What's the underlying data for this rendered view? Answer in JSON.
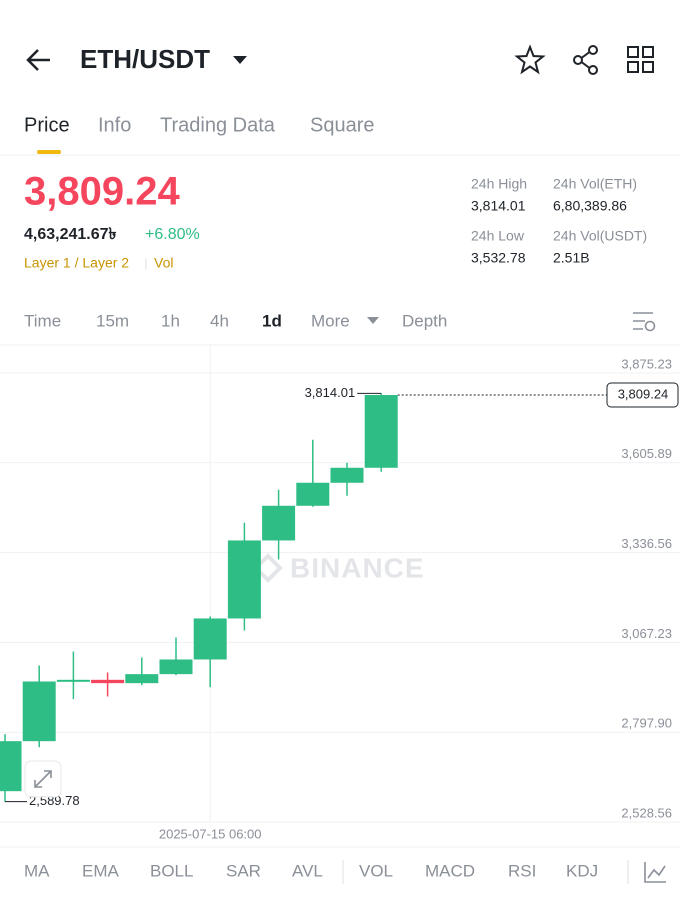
{
  "header": {
    "pair": "ETH/USDT"
  },
  "tabs": [
    "Price",
    "Info",
    "Trading Data",
    "Square"
  ],
  "price": {
    "last": "3,809.24",
    "fiat": "4,63,241.67৳",
    "change": "+6.80%",
    "tags": "Layer 1 / Layer 2",
    "tag_extra": "Vol"
  },
  "stats": [
    {
      "label": "24h High",
      "value": "3,814.01"
    },
    {
      "label": "24h Vol(ETH)",
      "value": "6,80,389.86"
    },
    {
      "label": "24h Low",
      "value": "3,532.78"
    },
    {
      "label": "24h Vol(USDT)",
      "value": "2.51B"
    }
  ],
  "timeframes": [
    "Time",
    "15m",
    "1h",
    "4h",
    "1d",
    "More",
    "Depth"
  ],
  "indicators": [
    "MA",
    "EMA",
    "BOLL",
    "SAR",
    "AVL",
    "VOL",
    "MACD",
    "RSI",
    "KDJ"
  ],
  "chart_data": {
    "type": "candlestick",
    "watermark": "BINANCE",
    "categories": [
      null,
      null,
      null,
      null,
      null,
      null,
      "2025-07-15 06:00",
      null,
      null,
      null,
      null,
      null
    ],
    "open": [
      2621,
      2771,
      2950,
      2955,
      2945,
      2972,
      3016,
      3139,
      3373,
      3477,
      3546,
      3591
    ],
    "high": [
      2792,
      2998,
      3040,
      2977,
      3022,
      3082,
      3145,
      3426,
      3525,
      3675,
      3606,
      3814.01
    ],
    "low": [
      2589.78,
      2753,
      2897,
      2905,
      2939,
      2969,
      2933,
      3103,
      3316,
      3474,
      3507,
      3579
    ],
    "close": [
      2771,
      2950,
      2955,
      2945,
      2972,
      3016,
      3139,
      3373,
      3477,
      3546,
      3591,
      3809.24
    ],
    "up_color": "#2ebd85",
    "down_color": "#f6465d",
    "ylim": [
      2528.56,
      3875.23
    ],
    "yticks": [
      {
        "value": 3875.23,
        "label": "3,875.23"
      },
      {
        "value": 3605.89,
        "label": "3,605.89"
      },
      {
        "value": 3336.56,
        "label": "3,336.56"
      },
      {
        "value": 3067.23,
        "label": "3,067.23"
      },
      {
        "value": 2797.9,
        "label": "2,797.90"
      },
      {
        "value": 2528.56,
        "label": "2,528.56"
      }
    ],
    "grid": true,
    "annotations": {
      "high": {
        "value": 3814.01,
        "label": "3,814.01"
      },
      "low": {
        "value": 2589.78,
        "label": "2,589.78"
      },
      "last": {
        "value": 3809.24,
        "label": "3,809.24"
      }
    }
  }
}
